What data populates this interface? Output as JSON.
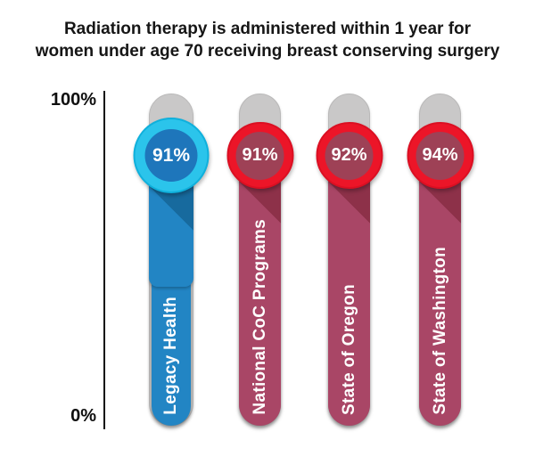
{
  "title": "Radiation therapy is administered within 1 year for women under age 70 receiving breast conserving surgery",
  "y_axis": {
    "top_label": "100%",
    "bottom_label": "0%"
  },
  "chart_data": {
    "type": "bar",
    "orientation": "vertical",
    "title": "Radiation therapy is administered within 1 year for women under age 70 receiving breast conserving surgery",
    "categories": [
      "Legacy Health",
      "National CoC Programs",
      "State of Oregon",
      "State of Washington"
    ],
    "values": [
      91,
      91,
      92,
      94
    ],
    "ylim": [
      0,
      100
    ],
    "yticks": [
      "0%",
      "100%"
    ],
    "grid": false,
    "legend": false,
    "track_color": "#c9c8c8",
    "background": "#ffffff",
    "highlight_index": 0,
    "bars": [
      {
        "label": "Legacy Health",
        "value": 91,
        "value_label": "91%",
        "highlighted": true,
        "colors": {
          "ring": "#2bc4eb",
          "ring_edge": "#0fb0dc",
          "badge": "#1e76bb",
          "fill": "#2285c4",
          "shadow": "#176a9e"
        }
      },
      {
        "label": "National CoC Programs",
        "value": 91,
        "value_label": "91%",
        "highlighted": false,
        "colors": {
          "ring": "#ec1528",
          "ring_edge": "#db0f22",
          "badge": "#9e4156",
          "fill": "#a94666",
          "shadow": "#8d3149"
        }
      },
      {
        "label": "State of Oregon",
        "value": 92,
        "value_label": "92%",
        "highlighted": false,
        "colors": {
          "ring": "#ec1528",
          "ring_edge": "#db0f22",
          "badge": "#9e4156",
          "fill": "#a94666",
          "shadow": "#8d3149"
        }
      },
      {
        "label": "State of Washington",
        "value": 94,
        "value_label": "94%",
        "highlighted": false,
        "colors": {
          "ring": "#ec1528",
          "ring_edge": "#db0f22",
          "badge": "#9e4156",
          "fill": "#a94666",
          "shadow": "#8d3149"
        }
      }
    ]
  }
}
